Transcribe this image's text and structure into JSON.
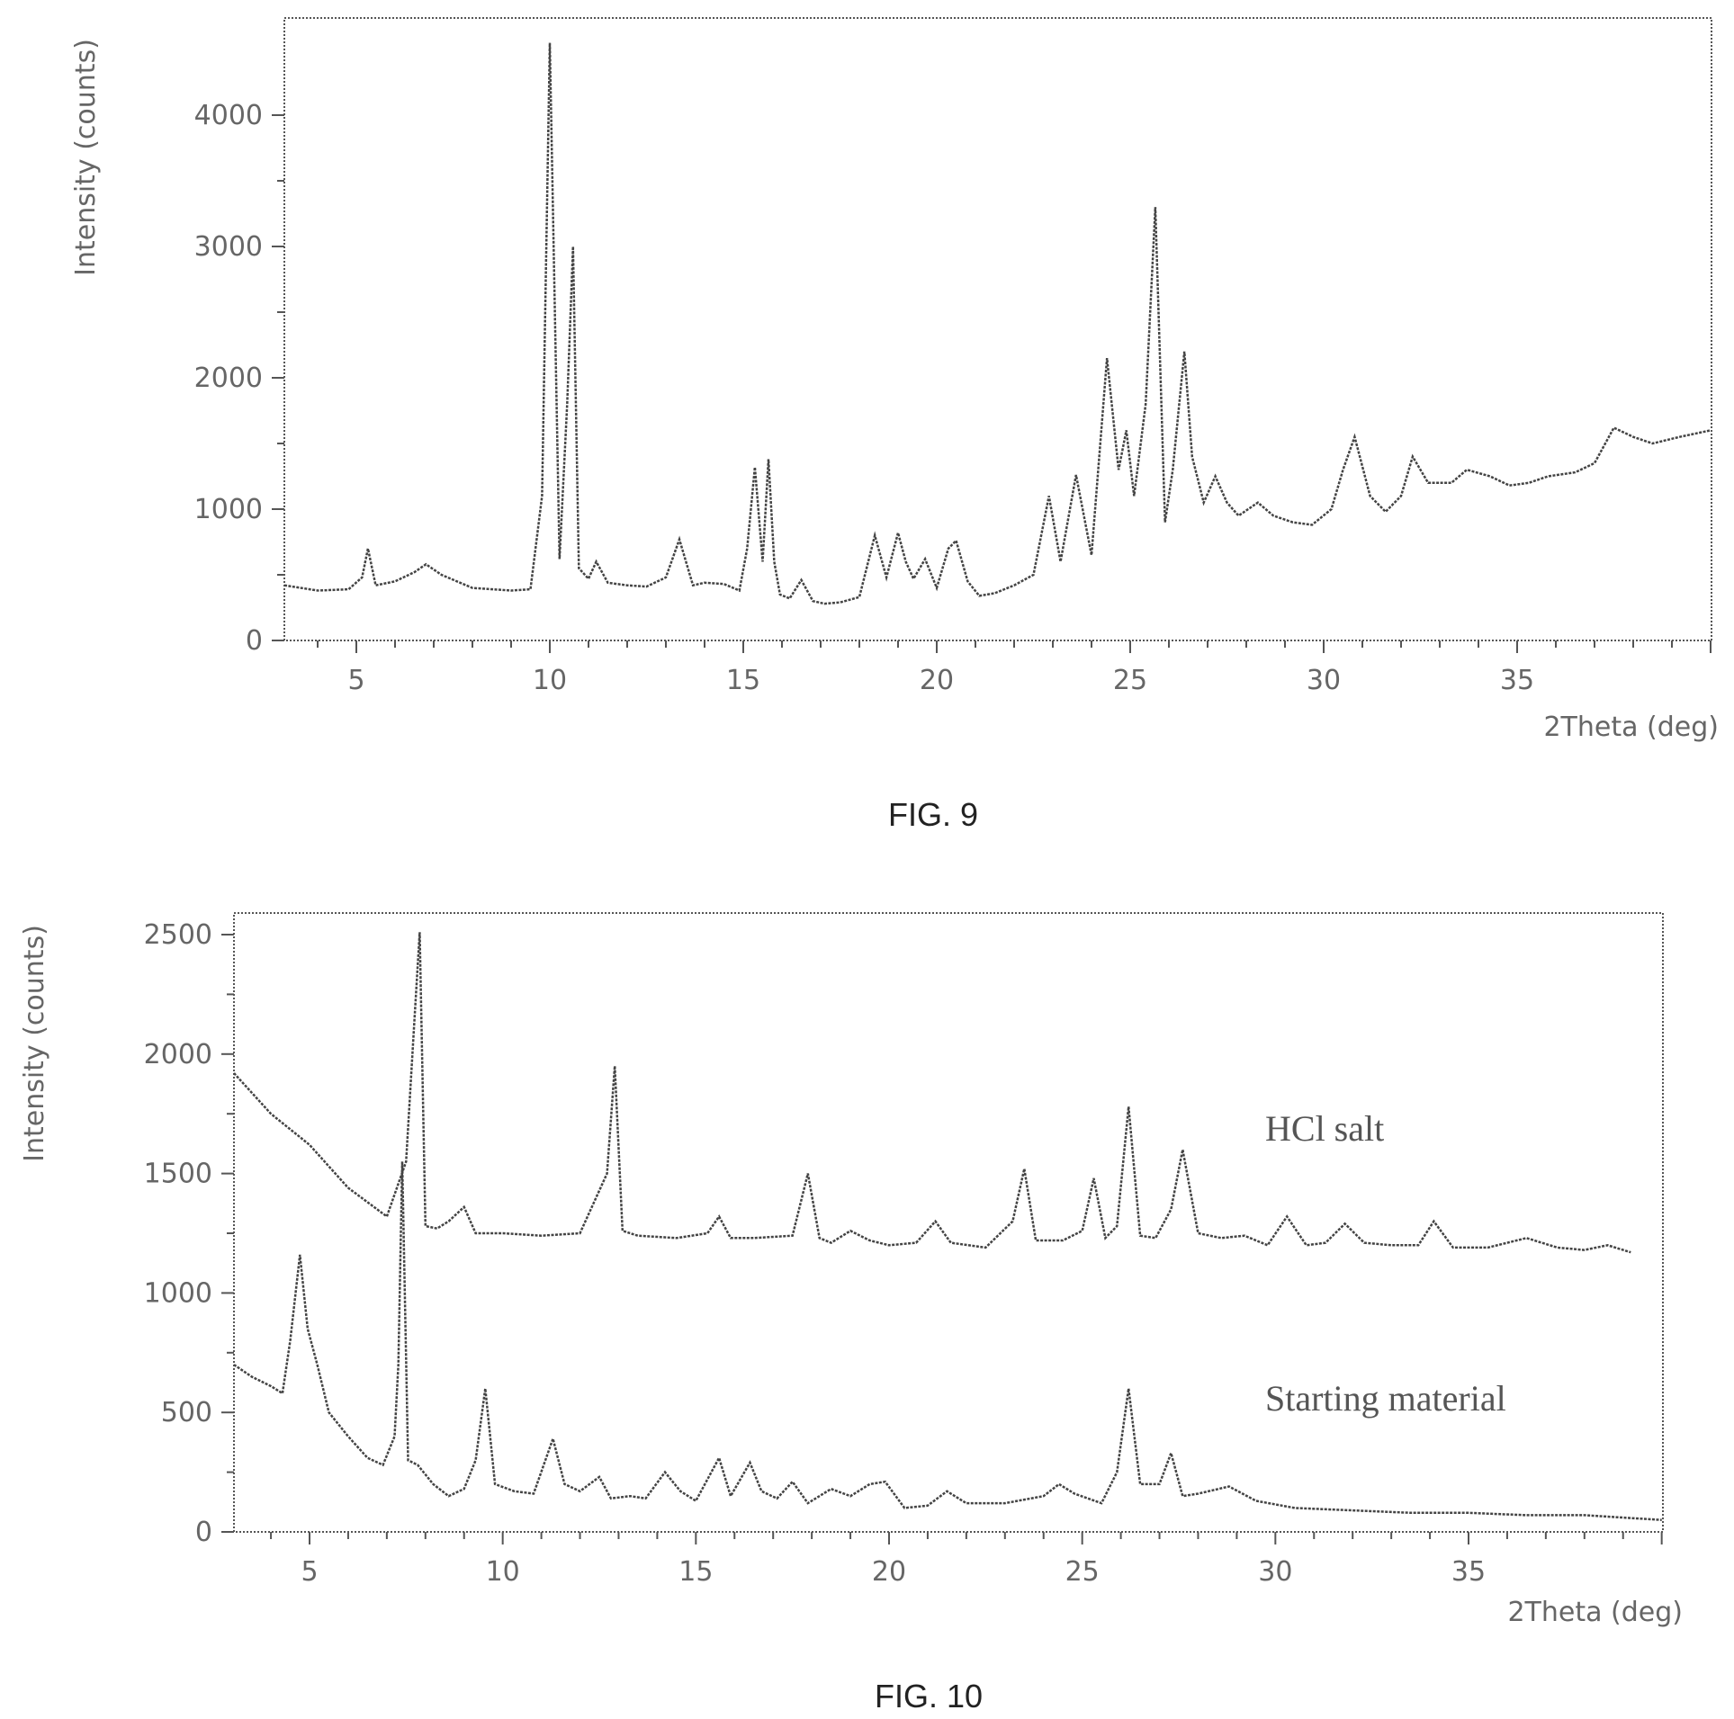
{
  "chart_data": [
    {
      "type": "line",
      "caption": "FIG. 9",
      "xlabel": "2Theta (deg)",
      "ylabel": "Intensity (counts)",
      "xlim": [
        3,
        40
      ],
      "ylim": [
        0,
        4800
      ],
      "xticks": [
        5,
        10,
        15,
        20,
        25,
        30,
        35
      ],
      "yticks": [
        0,
        1000,
        2000,
        3000,
        4000
      ],
      "series": [
        {
          "x": [
            3.0,
            4.0,
            4.8,
            5.15,
            5.3,
            5.5,
            6.0,
            6.5,
            6.8,
            7.2,
            8.0,
            9.0,
            9.5,
            9.8,
            10.0,
            10.25,
            10.45,
            10.6,
            10.75,
            11.0,
            11.2,
            11.5,
            12.0,
            12.5,
            13.0,
            13.35,
            13.7,
            14.0,
            14.5,
            14.9,
            15.1,
            15.3,
            15.5,
            15.65,
            15.8,
            15.95,
            16.2,
            16.5,
            16.8,
            17.1,
            17.5,
            18.0,
            18.4,
            18.7,
            19.0,
            19.2,
            19.4,
            19.7,
            20.0,
            20.3,
            20.5,
            20.8,
            21.1,
            21.5,
            22.0,
            22.5,
            22.9,
            23.2,
            23.6,
            24.0,
            24.4,
            24.7,
            24.9,
            25.1,
            25.4,
            25.65,
            25.9,
            26.1,
            26.4,
            26.6,
            26.9,
            27.2,
            27.5,
            27.8,
            28.3,
            28.7,
            29.2,
            29.7,
            30.2,
            30.5,
            30.8,
            31.2,
            31.6,
            32.0,
            32.3,
            32.7,
            33.3,
            33.7,
            34.3,
            34.8,
            35.3,
            35.8,
            36.5,
            37.0,
            37.5,
            38.0,
            38.5,
            39.2,
            40.0
          ],
          "y": [
            420,
            380,
            390,
            480,
            700,
            420,
            450,
            520,
            580,
            500,
            400,
            380,
            390,
            1100,
            4550,
            620,
            1800,
            3000,
            550,
            470,
            600,
            440,
            420,
            410,
            480,
            770,
            420,
            440,
            430,
            380,
            700,
            1320,
            600,
            1380,
            600,
            350,
            320,
            460,
            300,
            280,
            290,
            330,
            800,
            480,
            820,
            600,
            470,
            620,
            400,
            700,
            760,
            450,
            340,
            360,
            420,
            500,
            1100,
            600,
            1260,
            650,
            2150,
            1300,
            1600,
            1100,
            1800,
            3300,
            900,
            1300,
            2200,
            1400,
            1050,
            1250,
            1050,
            950,
            1050,
            950,
            900,
            880,
            1000,
            1300,
            1550,
            1100,
            980,
            1100,
            1400,
            1200,
            1200,
            1300,
            1250,
            1180,
            1200,
            1250,
            1280,
            1350,
            1620,
            1550,
            1500,
            1550,
            1600
          ]
        }
      ]
    },
    {
      "type": "line",
      "caption": "FIG. 10",
      "xlabel": "2Theta (deg)",
      "ylabel": "Intensity (counts)",
      "xlim": [
        3,
        40
      ],
      "ylim": [
        0,
        2600
      ],
      "xticks": [
        5,
        10,
        15,
        20,
        25,
        30,
        35
      ],
      "yticks": [
        0,
        500,
        1000,
        1500,
        2000,
        2500
      ],
      "series": [
        {
          "name": "HCl salt",
          "x": [
            3.0,
            4.0,
            5.0,
            6.0,
            7.0,
            7.5,
            7.7,
            7.85,
            8.0,
            8.3,
            8.6,
            9.0,
            9.3,
            10.0,
            11.0,
            12.0,
            12.7,
            12.9,
            13.1,
            13.5,
            14.5,
            15.3,
            15.6,
            15.9,
            16.5,
            17.5,
            17.9,
            18.2,
            18.5,
            19.0,
            19.5,
            20.0,
            20.7,
            21.2,
            21.6,
            22.5,
            23.2,
            23.5,
            23.8,
            24.5,
            25.0,
            25.3,
            25.6,
            25.9,
            26.2,
            26.5,
            26.9,
            27.3,
            27.6,
            28.0,
            28.6,
            29.2,
            29.8,
            30.3,
            30.8,
            31.3,
            31.8,
            32.3,
            33.0,
            33.7,
            34.1,
            34.6,
            35.5,
            36.5,
            37.3,
            38.0,
            38.6,
            39.2
          ],
          "y": [
            1920,
            1750,
            1620,
            1440,
            1320,
            1550,
            2100,
            2510,
            1280,
            1270,
            1300,
            1360,
            1250,
            1250,
            1240,
            1250,
            1500,
            1950,
            1260,
            1240,
            1230,
            1250,
            1320,
            1230,
            1230,
            1240,
            1500,
            1230,
            1210,
            1260,
            1220,
            1200,
            1210,
            1300,
            1210,
            1190,
            1300,
            1520,
            1220,
            1220,
            1260,
            1480,
            1230,
            1280,
            1780,
            1240,
            1230,
            1350,
            1600,
            1250,
            1230,
            1240,
            1200,
            1320,
            1200,
            1210,
            1290,
            1210,
            1200,
            1200,
            1300,
            1190,
            1190,
            1230,
            1190,
            1180,
            1200,
            1170
          ]
        },
        {
          "name": "Starting material",
          "x": [
            3.0,
            3.5,
            4.0,
            4.3,
            4.5,
            4.75,
            4.95,
            5.2,
            5.5,
            6.0,
            6.5,
            6.9,
            7.2,
            7.3,
            7.4,
            7.55,
            7.8,
            8.2,
            8.6,
            9.0,
            9.3,
            9.55,
            9.8,
            10.3,
            10.8,
            11.3,
            11.6,
            12.0,
            12.5,
            12.8,
            13.3,
            13.7,
            14.2,
            14.6,
            15.0,
            15.6,
            15.9,
            16.4,
            16.7,
            17.1,
            17.5,
            17.9,
            18.5,
            19.0,
            19.5,
            19.9,
            20.4,
            21.0,
            21.5,
            22.0,
            23.0,
            24.0,
            24.4,
            24.8,
            25.5,
            25.9,
            26.2,
            26.5,
            27.0,
            27.3,
            27.6,
            28.0,
            28.8,
            29.5,
            30.5,
            32.0,
            33.5,
            35.0,
            36.5,
            38.0,
            39.0,
            40.0
          ],
          "y": [
            700,
            650,
            610,
            580,
            800,
            1160,
            850,
            700,
            500,
            400,
            310,
            280,
            400,
            700,
            1550,
            300,
            280,
            200,
            150,
            180,
            300,
            600,
            200,
            170,
            160,
            390,
            200,
            170,
            230,
            140,
            150,
            140,
            250,
            170,
            130,
            310,
            150,
            290,
            170,
            140,
            210,
            120,
            180,
            150,
            200,
            210,
            100,
            110,
            170,
            120,
            120,
            150,
            200,
            160,
            120,
            250,
            600,
            200,
            200,
            330,
            150,
            160,
            190,
            130,
            100,
            90,
            80,
            80,
            70,
            70,
            60,
            50
          ]
        }
      ]
    }
  ]
}
